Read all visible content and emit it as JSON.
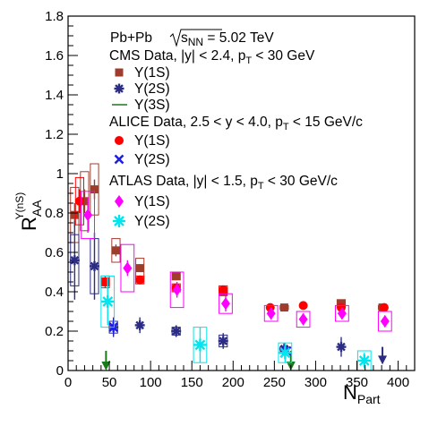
{
  "chart_data": {
    "type": "scatter",
    "title": "",
    "xlabel": "N",
    "xlabel_sub": "Part",
    "ylabel": "R",
    "ylabel_sub": "AA",
    "ylabel_sup": "Υ(nS)",
    "xlim": [
      0,
      420
    ],
    "ylim": [
      0,
      1.8
    ],
    "xticks": [
      "0",
      "50",
      "100",
      "150",
      "200",
      "250",
      "300",
      "350",
      "400"
    ],
    "yticks": [
      "0",
      "0.2",
      "0.4",
      "0.6",
      "0.8",
      "1",
      "1.2",
      "1.4",
      "1.6",
      "1.8"
    ],
    "grid": false,
    "legend_placement": "top-left (inside plot)",
    "collision_text": {
      "main": "Pb+Pb ",
      "sqrt": "s",
      "sqrt_sub": "NN",
      "tail": " = 5.02 TeV"
    },
    "legend": {
      "cms_header": "CMS Data, |y| < 2.4, p",
      "cms_header_sub": "T",
      "cms_header_tail": " < 30 GeV",
      "cms_1s": "Υ(1S)",
      "cms_2s": "Υ(2S)",
      "cms_3s": "Υ(3S)",
      "alice_header": "ALICE Data, 2.5 < y < 4.0, p",
      "alice_header_sub": "T",
      "alice_header_tail": " < 15 GeV/c",
      "alice_1s": "Υ(1S)",
      "alice_2s": "Υ(2S)",
      "atlas_header": "ATLAS Data, |y| < 1.5, p",
      "atlas_header_sub": "T",
      "atlas_header_tail": " < 30 GeV/c",
      "atlas_1s": "Υ(1S)",
      "atlas_2s": "Υ(2S)"
    },
    "colors": {
      "cms_1s": "#a03c2c",
      "cms_2s": "#2c2c84",
      "cms_3s": "#1a7a1a",
      "alice_1s": "#ff0000",
      "alice_2s": "#1e1ee0",
      "atlas_1s": "#ff00ff",
      "atlas_2s": "#00e5ee"
    },
    "series": [
      {
        "name": "CMS Υ(1S)",
        "marker": "square",
        "color": "#a03c2c",
        "points": [
          {
            "x": 8,
            "y": 0.79,
            "stat": 0.06,
            "sys": 0.14,
            "box_w": 5
          },
          {
            "x": 20,
            "y": 0.86,
            "stat": 0.06,
            "sys": 0.15,
            "box_w": 5
          },
          {
            "x": 32,
            "y": 0.92,
            "stat": 0.05,
            "sys": 0.13,
            "box_w": 5
          },
          {
            "x": 45,
            "y": 0.45,
            "stat": 0.03,
            "sys": 0.03,
            "box_w": 5
          },
          {
            "x": 58,
            "y": 0.61,
            "stat": 0.03,
            "sys": 0.06,
            "box_w": 5
          },
          {
            "x": 87,
            "y": 0.52,
            "stat": 0.02,
            "sys": 0.05,
            "box_w": 5
          },
          {
            "x": 131,
            "y": 0.48,
            "stat": 0.02,
            "sys": 0.02,
            "box_w": 5
          },
          {
            "x": 188,
            "y": 0.4,
            "stat": 0.02,
            "sys": 0.02,
            "box_w": 5
          },
          {
            "x": 262,
            "y": 0.32,
            "stat": 0.01,
            "sys": 0.01,
            "box_w": 5
          },
          {
            "x": 331,
            "y": 0.34,
            "stat": 0.01,
            "sys": 0.02,
            "box_w": 5
          },
          {
            "x": 381,
            "y": 0.32,
            "stat": 0.01,
            "sys": 0.01,
            "box_w": 5
          }
        ]
      },
      {
        "name": "CMS Υ(2S)",
        "marker": "star",
        "color": "#2c2c84",
        "points": [
          {
            "x": 8,
            "y": 0.56,
            "stat": 0.2,
            "sys": 0.13,
            "box_w": 5
          },
          {
            "x": 32,
            "y": 0.53,
            "stat": 0.17,
            "sys": 0.14,
            "box_w": 5
          },
          {
            "x": 55,
            "y": 0.22,
            "stat": 0.05,
            "sys": 0.03,
            "box_w": 5
          },
          {
            "x": 87,
            "y": 0.23,
            "stat": 0.04,
            "sys": 0.0,
            "box_w": 5
          },
          {
            "x": 131,
            "y": 0.2,
            "stat": 0.03,
            "sys": 0.02,
            "box_w": 5
          },
          {
            "x": 188,
            "y": 0.15,
            "stat": 0.04,
            "sys": 0.03,
            "box_w": 5
          },
          {
            "x": 262,
            "y": 0.11,
            "stat": 0.03,
            "sys": 0.01,
            "box_w": 5
          },
          {
            "x": 331,
            "y": 0.12,
            "stat": 0.05,
            "sys": 0.0,
            "box_w": 5
          },
          {
            "x": 381,
            "y": 0.03,
            "stat": 0.0,
            "sys": 0.0,
            "box_w": 0,
            "upper_limit": true,
            "ul_top": 0.12
          }
        ]
      },
      {
        "name": "CMS Υ(3S)",
        "marker": "arrow",
        "color": "#1a7a1a",
        "points": [
          {
            "x": 46,
            "y": 0.0,
            "upper_limit": true,
            "ul_top": 0.1
          },
          {
            "x": 270,
            "y": 0.0,
            "upper_limit": true,
            "ul_top": 0.1
          }
        ]
      },
      {
        "name": "ALICE Υ(1S)",
        "marker": "circle",
        "color": "#ff0000",
        "points": [
          {
            "x": 14,
            "y": 0.86,
            "stat": 0.06,
            "sys": 0.12,
            "box_w": 5
          },
          {
            "x": 45,
            "y": 0.45,
            "stat": 0.02,
            "sys": 0.02,
            "box_w": 5
          },
          {
            "x": 87,
            "y": 0.46,
            "stat": 0.02,
            "sys": 0.02,
            "box_w": 5
          },
          {
            "x": 131,
            "y": 0.42,
            "stat": 0.02,
            "sys": 0.02,
            "box_w": 5
          },
          {
            "x": 188,
            "y": 0.41,
            "stat": 0.02,
            "sys": 0.02,
            "box_w": 5
          },
          {
            "x": 245,
            "y": 0.32,
            "stat": 0.02,
            "sys": 0.0,
            "box_w": 5
          },
          {
            "x": 285,
            "y": 0.33,
            "stat": 0.02,
            "sys": 0.0,
            "box_w": 5
          },
          {
            "x": 331,
            "y": 0.32,
            "stat": 0.02,
            "sys": 0.0,
            "box_w": 5
          },
          {
            "x": 383,
            "y": 0.32,
            "stat": 0.02,
            "sys": 0.0,
            "box_w": 5
          }
        ]
      },
      {
        "name": "ALICE Υ(2S)",
        "marker": "x",
        "color": "#1e1ee0",
        "points": [
          {
            "x": 55,
            "y": 0.22,
            "stat": 0.04,
            "sys": 0.0,
            "box_w": 0
          },
          {
            "x": 265,
            "y": 0.1,
            "stat": 0.02,
            "sys": 0.0,
            "box_w": 0
          }
        ]
      },
      {
        "name": "ATLAS Υ(1S)",
        "marker": "diamond",
        "color": "#ff00ff",
        "points": [
          {
            "x": 24,
            "y": 0.79,
            "stat": 0.09,
            "sys": 0.12,
            "box_w": 8
          },
          {
            "x": 72,
            "y": 0.52,
            "stat": 0.04,
            "sys": 0.12,
            "box_w": 8
          },
          {
            "x": 132,
            "y": 0.41,
            "stat": 0.04,
            "sys": 0.09,
            "box_w": 8
          },
          {
            "x": 191,
            "y": 0.34,
            "stat": 0.04,
            "sys": 0.05,
            "box_w": 8
          },
          {
            "x": 246,
            "y": 0.29,
            "stat": 0.03,
            "sys": 0.04,
            "box_w": 8
          },
          {
            "x": 285,
            "y": 0.26,
            "stat": 0.03,
            "sys": 0.04,
            "box_w": 8
          },
          {
            "x": 332,
            "y": 0.29,
            "stat": 0.03,
            "sys": 0.04,
            "box_w": 8
          },
          {
            "x": 384,
            "y": 0.25,
            "stat": 0.03,
            "sys": 0.05,
            "box_w": 8
          }
        ]
      },
      {
        "name": "ATLAS Υ(2S)",
        "marker": "star-cyan",
        "color": "#00e5ee",
        "points": [
          {
            "x": 48,
            "y": 0.35,
            "stat": 0.12,
            "sys": 0.13,
            "box_w": 8
          },
          {
            "x": 160,
            "y": 0.13,
            "stat": 0.09,
            "sys": 0.09,
            "box_w": 8
          },
          {
            "x": 263,
            "y": 0.09,
            "stat": 0.05,
            "sys": 0.05,
            "box_w": 8
          },
          {
            "x": 359,
            "y": 0.05,
            "stat": 0.04,
            "sys": 0.05,
            "box_w": 8
          }
        ]
      }
    ]
  }
}
